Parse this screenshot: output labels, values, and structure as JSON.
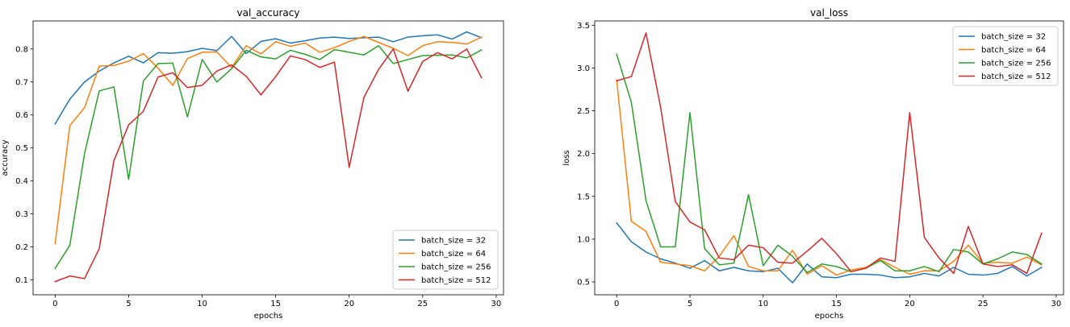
{
  "chart_data": [
    {
      "type": "line",
      "title": "val_accuracy",
      "xlabel": "epochs",
      "ylabel": "accuracy",
      "xlim": [
        -1.5,
        30.5
      ],
      "ylim": [
        0.055,
        0.885
      ],
      "xticks": [
        0,
        5,
        10,
        15,
        20,
        25,
        30
      ],
      "yticks": [
        0.1,
        0.2,
        0.3,
        0.4,
        0.5,
        0.6,
        0.7,
        0.8
      ],
      "legend_position": "lower-right",
      "grid": false,
      "x": [
        0,
        1,
        2,
        3,
        4,
        5,
        6,
        7,
        8,
        9,
        10,
        11,
        12,
        13,
        14,
        15,
        16,
        17,
        18,
        19,
        20,
        21,
        22,
        23,
        24,
        25,
        26,
        27,
        28,
        29
      ],
      "series": [
        {
          "name": "batch_size = 32",
          "color": "#1f77b4",
          "values": [
            0.573,
            0.648,
            0.7,
            0.733,
            0.758,
            0.778,
            0.758,
            0.789,
            0.787,
            0.792,
            0.802,
            0.795,
            0.838,
            0.786,
            0.823,
            0.831,
            0.818,
            0.825,
            0.833,
            0.836,
            0.832,
            0.834,
            0.836,
            0.822,
            0.836,
            0.84,
            0.843,
            0.83,
            0.852,
            0.834
          ]
        },
        {
          "name": "batch_size = 64",
          "color": "#ff7f0e",
          "values": [
            0.21,
            0.568,
            0.622,
            0.748,
            0.75,
            0.763,
            0.786,
            0.742,
            0.69,
            0.771,
            0.79,
            0.791,
            0.744,
            0.81,
            0.785,
            0.822,
            0.808,
            0.818,
            0.79,
            0.804,
            0.823,
            0.838,
            0.82,
            0.802,
            0.78,
            0.81,
            0.822,
            0.82,
            0.815,
            0.836
          ]
        },
        {
          "name": "batch_size = 256",
          "color": "#2ca02c",
          "values": [
            0.135,
            0.205,
            0.483,
            0.673,
            0.685,
            0.405,
            0.703,
            0.756,
            0.757,
            0.594,
            0.768,
            0.7,
            0.74,
            0.796,
            0.776,
            0.77,
            0.796,
            0.784,
            0.768,
            0.798,
            0.79,
            0.782,
            0.81,
            0.756,
            0.768,
            0.78,
            0.781,
            0.782,
            0.773,
            0.797
          ]
        },
        {
          "name": "batch_size = 512",
          "color": "#d62728",
          "values": [
            0.095,
            0.112,
            0.104,
            0.195,
            0.462,
            0.57,
            0.611,
            0.715,
            0.728,
            0.683,
            0.69,
            0.733,
            0.752,
            0.717,
            0.661,
            0.716,
            0.779,
            0.768,
            0.744,
            0.76,
            0.441,
            0.653,
            0.738,
            0.8,
            0.672,
            0.762,
            0.789,
            0.77,
            0.8,
            0.713
          ]
        }
      ]
    },
    {
      "type": "line",
      "title": "val_loss",
      "xlabel": "epochs",
      "ylabel": "loss",
      "xlim": [
        -1.5,
        30.5
      ],
      "ylim": [
        0.35,
        3.55
      ],
      "xticks": [
        0,
        5,
        10,
        15,
        20,
        25,
        30
      ],
      "yticks": [
        0.5,
        1.0,
        1.5,
        2.0,
        2.5,
        3.0,
        3.5
      ],
      "legend_position": "upper-right",
      "grid": false,
      "x": [
        0,
        1,
        2,
        3,
        4,
        5,
        6,
        7,
        8,
        9,
        10,
        11,
        12,
        13,
        14,
        15,
        16,
        17,
        18,
        19,
        20,
        21,
        22,
        23,
        24,
        25,
        26,
        27,
        28,
        29
      ],
      "series": [
        {
          "name": "batch_size = 32",
          "color": "#1f77b4",
          "values": [
            1.19,
            0.97,
            0.85,
            0.77,
            0.72,
            0.66,
            0.75,
            0.63,
            0.67,
            0.63,
            0.62,
            0.66,
            0.49,
            0.71,
            0.56,
            0.55,
            0.59,
            0.59,
            0.58,
            0.55,
            0.56,
            0.6,
            0.57,
            0.67,
            0.59,
            0.58,
            0.6,
            0.68,
            0.57,
            0.67
          ]
        },
        {
          "name": "batch_size = 64",
          "color": "#ff7f0e",
          "values": [
            2.86,
            1.21,
            1.09,
            0.73,
            0.71,
            0.69,
            0.63,
            0.8,
            1.04,
            0.68,
            0.63,
            0.63,
            0.87,
            0.59,
            0.69,
            0.58,
            0.64,
            0.67,
            0.76,
            0.67,
            0.59,
            0.63,
            0.63,
            0.74,
            0.93,
            0.72,
            0.73,
            0.72,
            0.79,
            0.7
          ]
        },
        {
          "name": "batch_size = 256",
          "color": "#2ca02c",
          "values": [
            3.16,
            2.6,
            1.45,
            0.91,
            0.91,
            2.48,
            0.89,
            0.7,
            0.72,
            1.52,
            0.69,
            0.93,
            0.8,
            0.61,
            0.71,
            0.68,
            0.62,
            0.66,
            0.75,
            0.63,
            0.63,
            0.68,
            0.62,
            0.88,
            0.85,
            0.71,
            0.77,
            0.85,
            0.82,
            0.71
          ]
        },
        {
          "name": "batch_size = 512",
          "color": "#d62728",
          "values": [
            2.85,
            2.9,
            3.41,
            2.54,
            1.44,
            1.2,
            1.11,
            0.78,
            0.76,
            0.93,
            0.9,
            0.73,
            0.72,
            0.86,
            1.01,
            0.83,
            0.62,
            0.66,
            0.78,
            0.74,
            2.48,
            1.02,
            0.78,
            0.6,
            1.15,
            0.71,
            0.68,
            0.7,
            0.6,
            1.07
          ]
        }
      ]
    }
  ]
}
